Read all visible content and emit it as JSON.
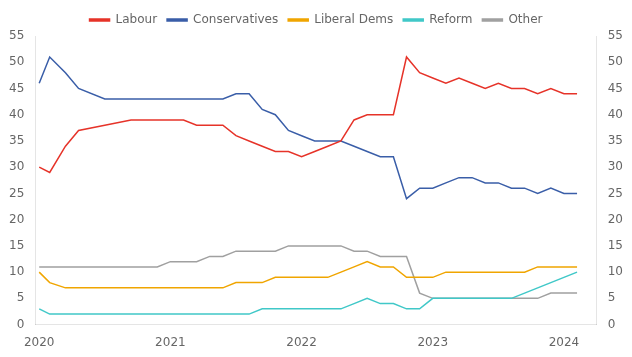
{
  "chart_data": {
    "type": "line",
    "x": [
      2020,
      2020.08,
      2020.2,
      2020.3,
      2020.5,
      2020.7,
      2020.9,
      2021,
      2021.1,
      2021.2,
      2021.3,
      2021.4,
      2021.5,
      2021.6,
      2021.7,
      2021.8,
      2021.9,
      2022,
      2022.1,
      2022.2,
      2022.3,
      2022.4,
      2022.5,
      2022.6,
      2022.7,
      2022.8,
      2022.9,
      2023,
      2023.1,
      2023.2,
      2023.3,
      2023.4,
      2023.5,
      2023.6,
      2023.7,
      2023.8,
      2023.9,
      2024,
      2024.1
    ],
    "series": [
      {
        "name": "Labour",
        "color": "#e63329",
        "values": [
          30,
          29,
          34,
          37,
          38,
          39,
          39,
          39,
          39,
          38,
          38,
          38,
          36,
          35,
          34,
          33,
          33,
          32,
          33,
          34,
          35,
          39,
          40,
          40,
          40,
          51,
          48,
          47,
          46,
          47,
          46,
          45,
          46,
          45,
          45,
          44,
          45,
          44,
          44
        ]
      },
      {
        "name": "Conservatives",
        "color": "#3a5ea8",
        "values": [
          46,
          51,
          48,
          45,
          43,
          43,
          43,
          43,
          43,
          43,
          43,
          43,
          44,
          44,
          41,
          40,
          37,
          36,
          35,
          35,
          35,
          34,
          33,
          32,
          32,
          24,
          26,
          26,
          27,
          28,
          28,
          27,
          27,
          26,
          26,
          25,
          26,
          25,
          25
        ]
      },
      {
        "name": "Liberal Dems",
        "color": "#f0a500",
        "values": [
          10,
          8,
          7,
          7,
          7,
          7,
          7,
          7,
          7,
          7,
          7,
          7,
          8,
          8,
          8,
          9,
          9,
          9,
          9,
          9,
          10,
          11,
          12,
          11,
          11,
          9,
          9,
          9,
          10,
          10,
          10,
          10,
          10,
          10,
          10,
          11,
          11,
          11,
          11
        ]
      },
      {
        "name": "Reform",
        "color": "#40c8c8",
        "values": [
          3,
          2,
          2,
          2,
          2,
          2,
          2,
          2,
          2,
          2,
          2,
          2,
          2,
          2,
          3,
          3,
          3,
          3,
          3,
          3,
          3,
          4,
          5,
          4,
          4,
          3,
          3,
          5,
          5,
          5,
          5,
          5,
          5,
          5,
          6,
          7,
          8,
          9,
          10
        ]
      },
      {
        "name": "Other",
        "color": "#a0a0a0",
        "values": [
          11,
          11,
          11,
          11,
          11,
          11,
          11,
          12,
          12,
          12,
          13,
          13,
          14,
          14,
          14,
          14,
          15,
          15,
          15,
          15,
          15,
          14,
          14,
          13,
          13,
          13,
          6,
          5,
          5,
          5,
          5,
          5,
          5,
          5,
          5,
          5,
          6,
          6,
          6
        ]
      }
    ],
    "xlim": [
      2019.97,
      2024.25
    ],
    "xticks": [
      2020,
      2021,
      2022,
      2023,
      2024
    ],
    "ylim": [
      0,
      55
    ],
    "yticks": [
      0,
      5,
      10,
      15,
      20,
      25,
      30,
      35,
      40,
      45,
      50,
      55
    ],
    "y2lim": [
      0,
      55
    ],
    "y2ticks": [
      0,
      5,
      10,
      15,
      20,
      25,
      30,
      35,
      40,
      45,
      50,
      55
    ],
    "grid": false,
    "legend": "top"
  }
}
